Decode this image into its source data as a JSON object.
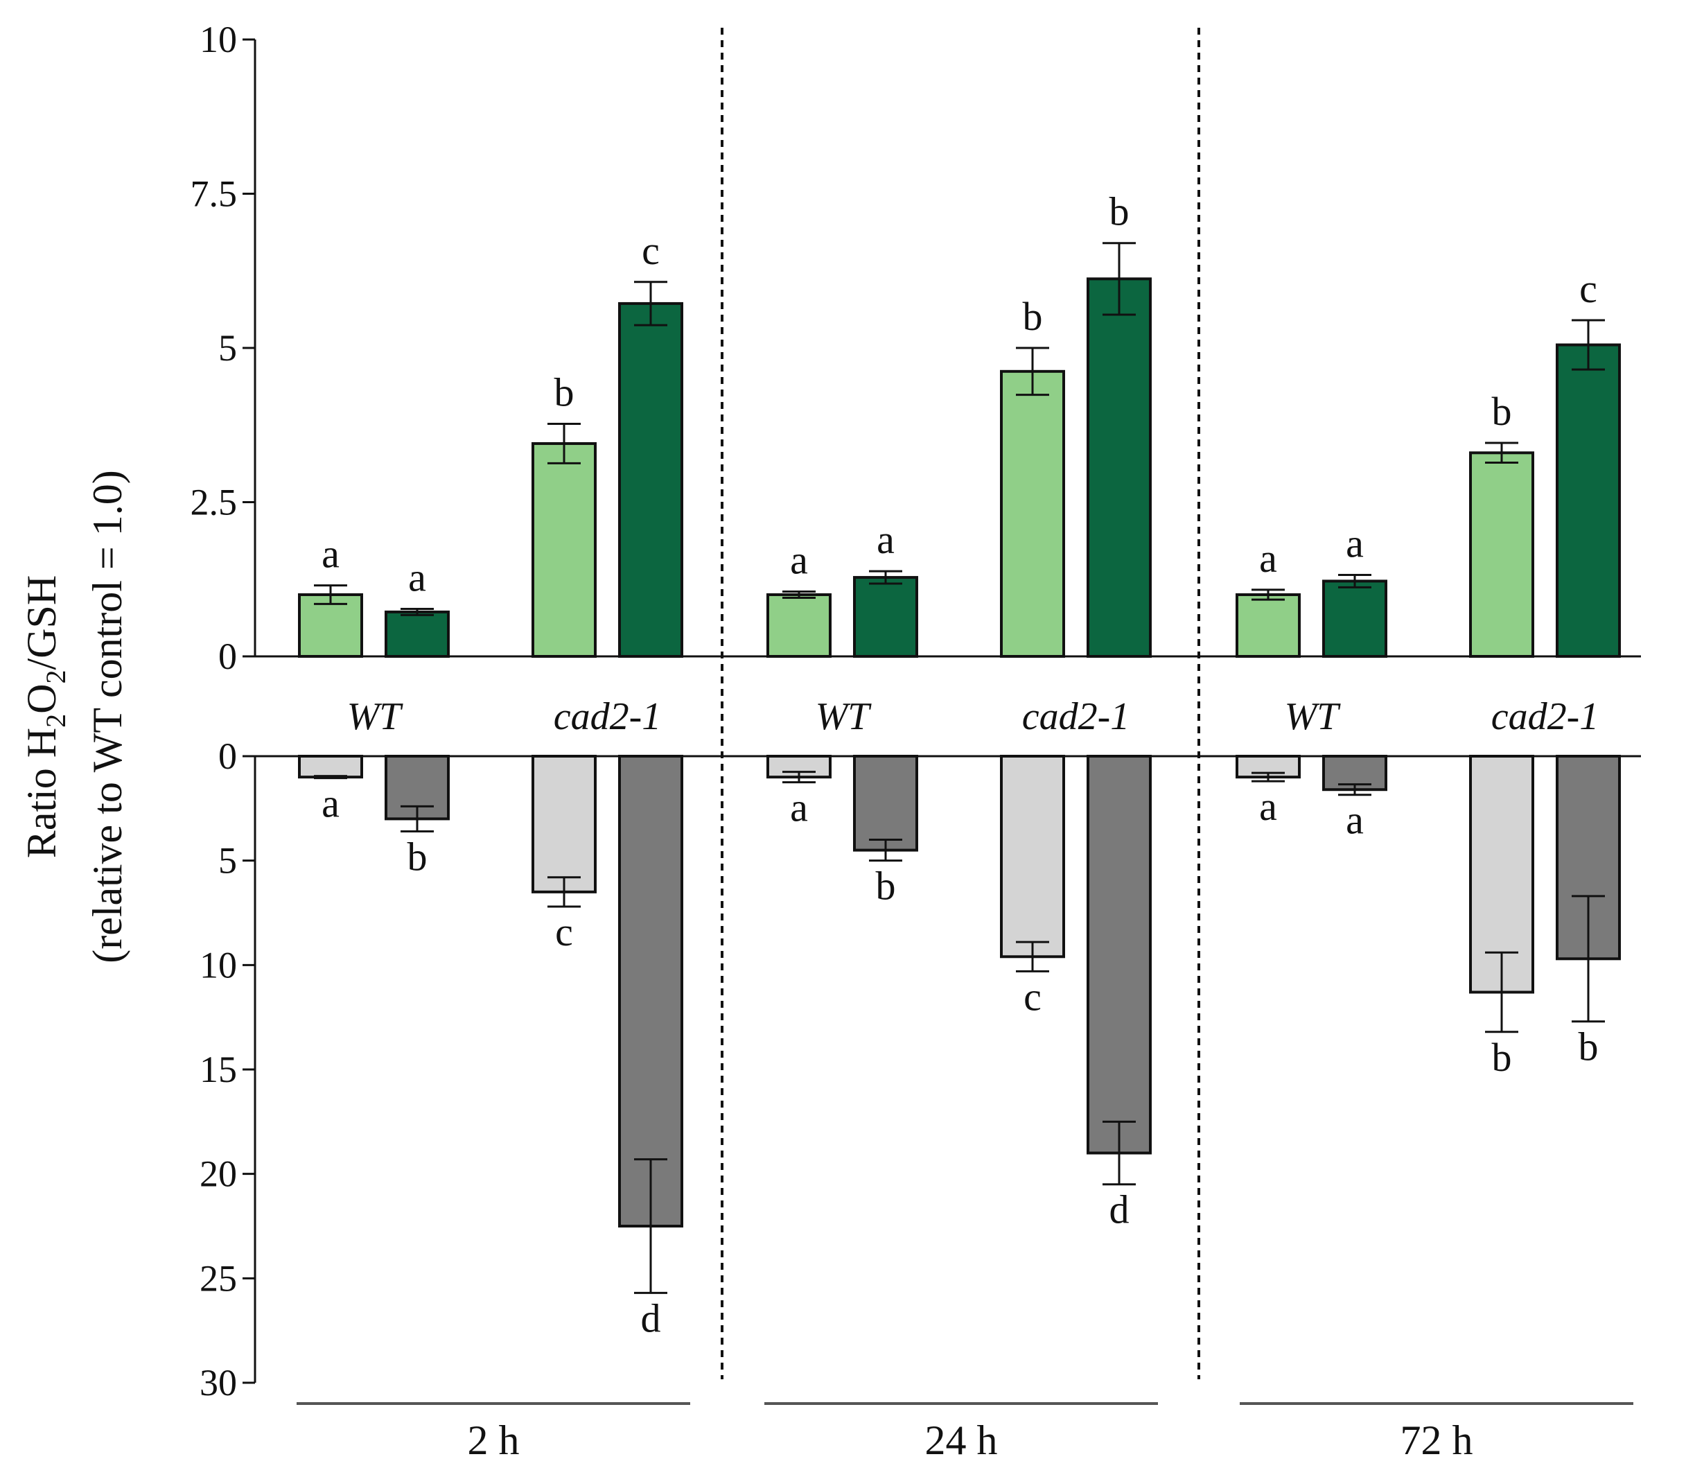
{
  "chart_data": {
    "type": "bar",
    "ylabel_line1_prefix": "Ratio H",
    "ylabel_sub1": "2",
    "ylabel_mid": "O",
    "ylabel_sub2": "2",
    "ylabel_suffix": "/GSH",
    "ylabel_line2": "(relative to WT control = 1.0)",
    "top_panel": {
      "ylim": [
        0,
        10
      ],
      "yticks": [
        {
          "value": 0,
          "label": "0"
        },
        {
          "value": 2.5,
          "label": "2.5"
        },
        {
          "value": 5,
          "label": "5"
        },
        {
          "value": 7.5,
          "label": "7.5"
        },
        {
          "value": 10,
          "label": "10"
        }
      ],
      "bar_colors": [
        "#90cf88",
        "#0c6640"
      ]
    },
    "bottom_panel": {
      "ylim": [
        0,
        30
      ],
      "inverted": true,
      "yticks": [
        {
          "value": 0,
          "label": "0"
        },
        {
          "value": 5,
          "label": "5"
        },
        {
          "value": 10,
          "label": "10"
        },
        {
          "value": 15,
          "label": "15"
        },
        {
          "value": 20,
          "label": "20"
        },
        {
          "value": 25,
          "label": "25"
        },
        {
          "value": 30,
          "label": "30"
        }
      ],
      "bar_colors": [
        "#d4d4d4",
        "#7a7a7a"
      ]
    },
    "time_points": [
      {
        "label": "2 h",
        "genotypes": [
          {
            "label": "WT",
            "top": [
              {
                "value": 1.0,
                "err": 0.15,
                "sig": "a"
              },
              {
                "value": 0.72,
                "err": 0.05,
                "sig": "a"
              }
            ],
            "bottom": [
              {
                "value": 1.0,
                "err": 0.05,
                "sig": "a"
              },
              {
                "value": 3.0,
                "err": 0.6,
                "sig": "b"
              }
            ]
          },
          {
            "label": "cad2-1",
            "top": [
              {
                "value": 3.45,
                "err": 0.32,
                "sig": "b"
              },
              {
                "value": 5.72,
                "err": 0.35,
                "sig": "c"
              }
            ],
            "bottom": [
              {
                "value": 6.5,
                "err": 0.7,
                "sig": "c"
              },
              {
                "value": 22.5,
                "err": 3.2,
                "sig": "d"
              }
            ]
          }
        ]
      },
      {
        "label": "24 h",
        "genotypes": [
          {
            "label": "WT",
            "top": [
              {
                "value": 1.0,
                "err": 0.05,
                "sig": "a"
              },
              {
                "value": 1.28,
                "err": 0.1,
                "sig": "a"
              }
            ],
            "bottom": [
              {
                "value": 1.0,
                "err": 0.25,
                "sig": "a"
              },
              {
                "value": 4.5,
                "err": 0.5,
                "sig": "b"
              }
            ]
          },
          {
            "label": "cad2-1",
            "top": [
              {
                "value": 4.62,
                "err": 0.38,
                "sig": "b"
              },
              {
                "value": 6.12,
                "err": 0.58,
                "sig": "b"
              }
            ],
            "bottom": [
              {
                "value": 9.6,
                "err": 0.7,
                "sig": "c"
              },
              {
                "value": 19.0,
                "err": 1.5,
                "sig": "d"
              }
            ]
          }
        ]
      },
      {
        "label": "72 h",
        "genotypes": [
          {
            "label": "WT",
            "top": [
              {
                "value": 1.0,
                "err": 0.08,
                "sig": "a"
              },
              {
                "value": 1.22,
                "err": 0.1,
                "sig": "a"
              }
            ],
            "bottom": [
              {
                "value": 1.0,
                "err": 0.2,
                "sig": "a"
              },
              {
                "value": 1.6,
                "err": 0.25,
                "sig": "a"
              }
            ]
          },
          {
            "label": "cad2-1",
            "top": [
              {
                "value": 3.3,
                "err": 0.16,
                "sig": "b"
              },
              {
                "value": 5.05,
                "err": 0.4,
                "sig": "c"
              }
            ],
            "bottom": [
              {
                "value": 11.3,
                "err": 1.9,
                "sig": "b"
              },
              {
                "value": 9.7,
                "err": 3.0,
                "sig": "b"
              }
            ]
          }
        ]
      }
    ]
  }
}
